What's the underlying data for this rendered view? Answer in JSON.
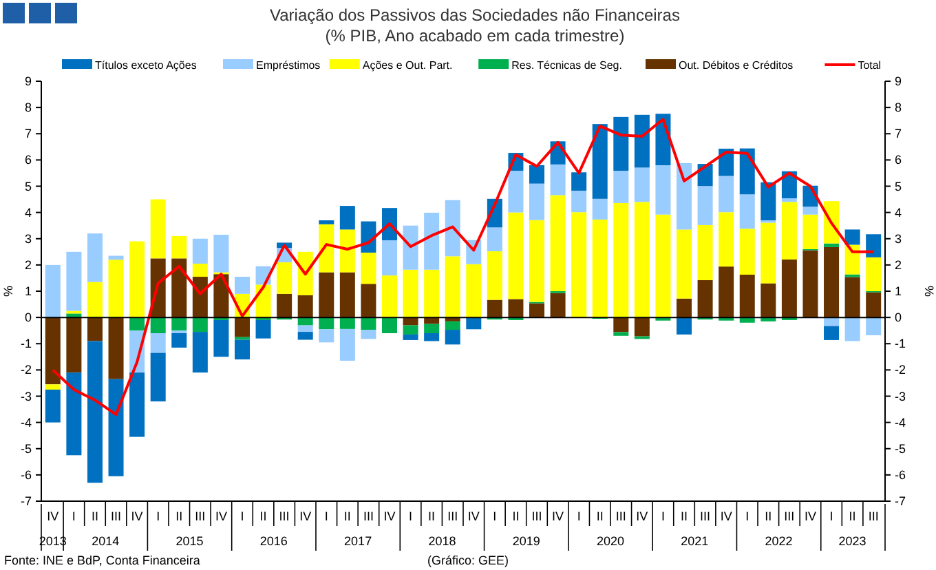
{
  "chart_data": {
    "type": "bar",
    "title": "Variação dos Passivos das Sociedades não Financeiras",
    "subtitle": "(% PIB, Ano acabado em cada trimestre)",
    "ylabel": "%",
    "y2label": "%",
    "stacked": true,
    "legend": "top",
    "categories": [
      "IV",
      "I",
      "II",
      "III",
      "IV",
      "I",
      "II",
      "III",
      "IV",
      "I",
      "II",
      "III",
      "IV",
      "I",
      "II",
      "III",
      "IV",
      "I",
      "II",
      "III",
      "IV",
      "I",
      "II",
      "III",
      "IV",
      "I",
      "II",
      "III",
      "IV",
      "I",
      "II",
      "III",
      "IV",
      "I",
      "II",
      "III",
      "IV",
      "I",
      "II",
      "III"
    ],
    "ylim": [
      -7,
      9
    ],
    "yticks": [
      -7,
      -6,
      -5,
      -4,
      -3,
      -2,
      -1,
      0,
      1,
      2,
      3,
      4,
      5,
      6,
      7,
      8,
      9
    ],
    "y2lim": [
      -7,
      9
    ],
    "y2ticks": [
      -7,
      -6,
      -5,
      -4,
      -3,
      -2,
      -1,
      0,
      1,
      2,
      3,
      4,
      5,
      6,
      7,
      8,
      9
    ],
    "series": [
      {
        "name": "Out. Débitos e Créditos",
        "color": "#663300",
        "values": [
          -2.55,
          -2.1,
          -0.9,
          -2.35,
          0,
          2.25,
          2.25,
          1.55,
          1.65,
          -0.75,
          0,
          0.9,
          0.85,
          1.72,
          1.72,
          1.28,
          0,
          -0.3,
          -0.25,
          -0.15,
          0,
          0.67,
          0.7,
          0.54,
          0.93,
          0,
          0,
          -0.56,
          -0.72,
          0,
          0.72,
          1.42,
          1.94,
          1.63,
          1.3,
          2.21,
          2.56,
          2.68,
          1.54,
          0.96
        ]
      },
      {
        "name": "Res. Técnicas de Seg.",
        "color": "#00b050",
        "values": [
          0,
          0.15,
          0,
          0,
          -0.5,
          -0.6,
          -0.5,
          -0.55,
          -0.1,
          -0.1,
          -0.1,
          -0.08,
          -0.3,
          -0.45,
          -0.44,
          -0.47,
          -0.6,
          -0.35,
          -0.35,
          -0.32,
          0,
          -0.08,
          -0.1,
          0.05,
          0.07,
          0,
          -0.05,
          -0.14,
          -0.1,
          -0.12,
          0,
          -0.08,
          -0.12,
          -0.2,
          -0.15,
          -0.1,
          0.04,
          0.14,
          0.1,
          0.04
        ]
      },
      {
        "name": "Ações e Out. Part.",
        "color": "#ffff00",
        "values": [
          -0.2,
          0.1,
          1.35,
          2.2,
          2.9,
          2.25,
          0.85,
          0.5,
          0.07,
          0.9,
          1.25,
          1.2,
          1.65,
          1.83,
          1.63,
          1.19,
          1.6,
          1.82,
          1.82,
          2.33,
          2.03,
          1.85,
          3.3,
          3.12,
          3.66,
          4.01,
          3.73,
          4.36,
          4.4,
          3.92,
          2.63,
          2.1,
          2.07,
          1.75,
          2.31,
          2.19,
          1.32,
          1.61,
          1.13,
          1.29
        ]
      },
      {
        "name": "Empréstimos",
        "color": "#99ccff",
        "values": [
          2.0,
          2.25,
          1.85,
          0.15,
          -1.6,
          -0.75,
          -0.1,
          0.95,
          1.43,
          0.65,
          0.7,
          0.55,
          -0.25,
          -0.5,
          -1.21,
          -0.35,
          1.34,
          1.68,
          2.17,
          2.14,
          0.92,
          0.91,
          1.59,
          1.39,
          1.17,
          0.82,
          0.79,
          1.23,
          1.31,
          1.88,
          2.53,
          1.49,
          1.38,
          1.31,
          0.09,
          0.14,
          0.3,
          -0.33,
          -0.9,
          -0.68
        ]
      },
      {
        "name": "Títulos exceto Ações",
        "color": "#0070c0",
        "values": [
          -1.25,
          -3.15,
          -5.4,
          -3.7,
          -2.45,
          -1.85,
          -0.55,
          -1.55,
          -1.4,
          -0.75,
          -0.7,
          0.2,
          -0.3,
          0.15,
          0.9,
          1.19,
          1.23,
          -0.21,
          -0.3,
          -0.56,
          -0.45,
          1.09,
          0.68,
          0.7,
          0.88,
          0.7,
          2.85,
          2.05,
          2.01,
          1.96,
          -0.65,
          0.84,
          1.04,
          1.75,
          1.45,
          1.03,
          0.8,
          -0.53,
          0.58,
          0.88
        ]
      },
      {
        "name": "Total",
        "type": "line",
        "color": "#ff0000",
        "values": [
          -2.0,
          -2.75,
          -3.15,
          -3.7,
          -1.7,
          1.3,
          1.95,
          0.9,
          1.65,
          0.05,
          1.15,
          2.75,
          1.65,
          2.78,
          2.6,
          2.85,
          3.57,
          2.7,
          3.12,
          3.45,
          2.56,
          4.3,
          6.2,
          5.76,
          6.67,
          5.5,
          7.29,
          6.95,
          6.9,
          7.55,
          5.2,
          5.75,
          6.3,
          6.25,
          4.97,
          5.5,
          5.0,
          3.6,
          2.5,
          2.5
        ]
      }
    ],
    "annotations": [
      "2013",
      "2014",
      "2015",
      "2016",
      "2017",
      "2018",
      "2019",
      "2020",
      "2021",
      "2022",
      "2023",
      "Fonte: INE e BdP, Conta Financeira",
      "(Gráfico: GEE)"
    ]
  }
}
